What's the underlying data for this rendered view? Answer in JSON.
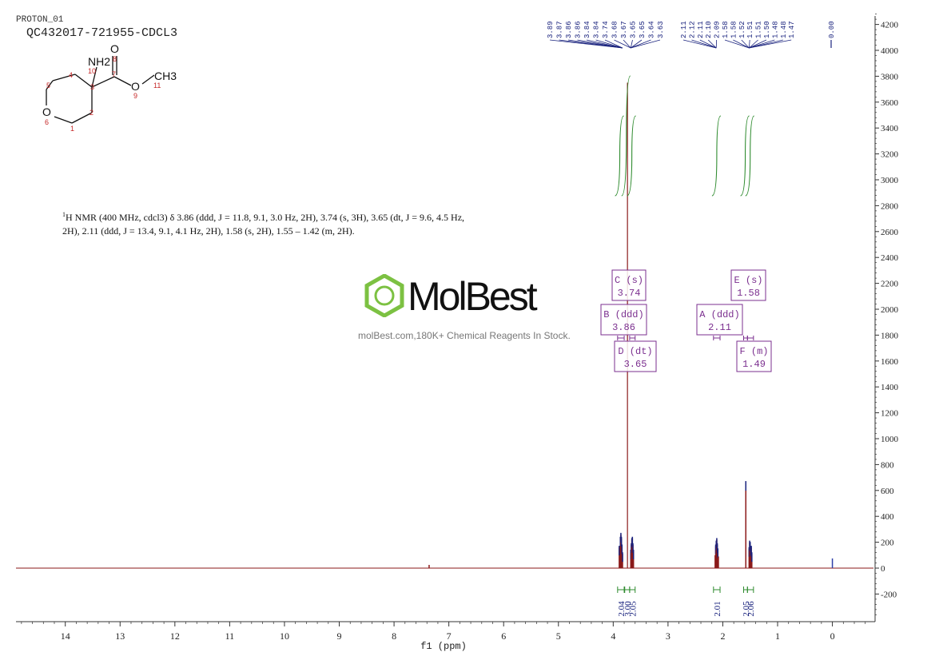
{
  "header": {
    "experiment": "PROTON_01",
    "sample_id": "QC432017-721955-CDCL3"
  },
  "structure": {
    "atom_labels": {
      "amine": "NH2",
      "carbonyl_o": "O",
      "ether_o_ring": "O",
      "ester_o": "O",
      "methyl": "CH3"
    },
    "numbers": [
      "1",
      "2",
      "3",
      "4",
      "5",
      "6",
      "7",
      "8",
      "9",
      "10",
      "11"
    ]
  },
  "description": {
    "superscript": "1",
    "line1": "H NMR (400 MHz, cdcl3) δ 3.86 (ddd, J = 11.8, 9.1, 3.0 Hz, 2H), 3.74 (s, 3H), 3.65 (dt, J = 9.6, 4.5 Hz,",
    "line2": "2H), 2.11 (ddd, J = 13.4, 9.1, 4.1 Hz, 2H), 1.58 (s, 2H), 1.55 – 1.42 (m, 2H)."
  },
  "watermark": {
    "brand": "MolBest",
    "tagline": "molBest.com,180K+ Chemical Reagents In Stock."
  },
  "colors": {
    "spectrum": "#8b1a1a",
    "peak_labels": "#1a237e",
    "integral": "#2e8b2e",
    "multiplet_box": "#7b2f8f",
    "axis": "#333333",
    "reference": "#2e3fa8"
  },
  "chart_data": {
    "type": "line",
    "xlabel": "f1 (ppm)",
    "xlim": [
      14.9,
      -0.75
    ],
    "x_ticks": [
      "14",
      "13",
      "12",
      "11",
      "10",
      "9",
      "8",
      "7",
      "6",
      "5",
      "4",
      "3",
      "2",
      "1",
      "0"
    ],
    "ylim": [
      -420,
      4320
    ],
    "y_ticks": [
      "4200",
      "4000",
      "3800",
      "3600",
      "3400",
      "3200",
      "3000",
      "2800",
      "2600",
      "2400",
      "2200",
      "2000",
      "1800",
      "1600",
      "1400",
      "1200",
      "1000",
      "800",
      "600",
      "400",
      "200",
      "0",
      "-200"
    ],
    "peaks": [
      {
        "ppm": 3.89,
        "h": 160
      },
      {
        "ppm": 3.87,
        "h": 230
      },
      {
        "ppm": 3.86,
        "h": 260
      },
      {
        "ppm": 3.85,
        "h": 230
      },
      {
        "ppm": 3.84,
        "h": 170
      },
      {
        "ppm": 3.83,
        "h": 110
      },
      {
        "ppm": 3.74,
        "h": 3750
      },
      {
        "ppm": 3.68,
        "h": 130
      },
      {
        "ppm": 3.67,
        "h": 180
      },
      {
        "ppm": 3.66,
        "h": 220
      },
      {
        "ppm": 3.65,
        "h": 230
      },
      {
        "ppm": 3.64,
        "h": 180
      },
      {
        "ppm": 3.63,
        "h": 130
      },
      {
        "ppm": 2.14,
        "h": 100
      },
      {
        "ppm": 2.13,
        "h": 170
      },
      {
        "ppm": 2.12,
        "h": 200
      },
      {
        "ppm": 2.11,
        "h": 220
      },
      {
        "ppm": 2.1,
        "h": 180
      },
      {
        "ppm": 2.09,
        "h": 140
      },
      {
        "ppm": 2.08,
        "h": 90
      },
      {
        "ppm": 1.58,
        "h": 660
      },
      {
        "ppm": 1.52,
        "h": 150
      },
      {
        "ppm": 1.51,
        "h": 200
      },
      {
        "ppm": 1.5,
        "h": 190
      },
      {
        "ppm": 1.49,
        "h": 150
      },
      {
        "ppm": 1.48,
        "h": 160
      },
      {
        "ppm": 1.47,
        "h": 110
      },
      {
        "ppm": 7.36,
        "h": 25
      },
      {
        "ppm": 0.0,
        "h": 75
      }
    ],
    "peak_labels_group1": [
      "3.89",
      "3.87",
      "3.86",
      "3.86",
      "3.84",
      "3.84",
      "3.74",
      "3.68",
      "3.67",
      "3.65",
      "3.65",
      "3.64",
      "3.63"
    ],
    "peak_labels_group2": [
      "2.11",
      "2.12",
      "2.11",
      "2.10",
      "2.09",
      "1.58",
      "1.58",
      "1.52",
      "1.51",
      "1.51",
      "1.50",
      "1.48",
      "1.48",
      "1.47"
    ],
    "peak_label_zero": "0.00",
    "multiplets": [
      {
        "label": "C (s)",
        "shift": "3.74",
        "ppm": 3.74
      },
      {
        "label": "B (ddd)",
        "shift": "3.86",
        "ppm": 3.86
      },
      {
        "label": "D (dt)",
        "shift": "3.65",
        "ppm": 3.65
      },
      {
        "label": "A (ddd)",
        "shift": "2.11",
        "ppm": 2.11
      },
      {
        "label": "E (s)",
        "shift": "1.58",
        "ppm": 1.58
      },
      {
        "label": "F (m)",
        "shift": "1.49",
        "ppm": 1.49
      }
    ],
    "integrals": [
      {
        "from": 3.92,
        "to": 3.8,
        "value": "2.04"
      },
      {
        "from": 3.79,
        "to": 3.7,
        "value": "3.00"
      },
      {
        "from": 3.7,
        "to": 3.6,
        "value": "2.05"
      },
      {
        "from": 2.17,
        "to": 2.05,
        "value": "2.01"
      },
      {
        "from": 1.62,
        "to": 1.55,
        "value": "2.05"
      },
      {
        "from": 1.55,
        "to": 1.44,
        "value": "2.06"
      }
    ]
  }
}
